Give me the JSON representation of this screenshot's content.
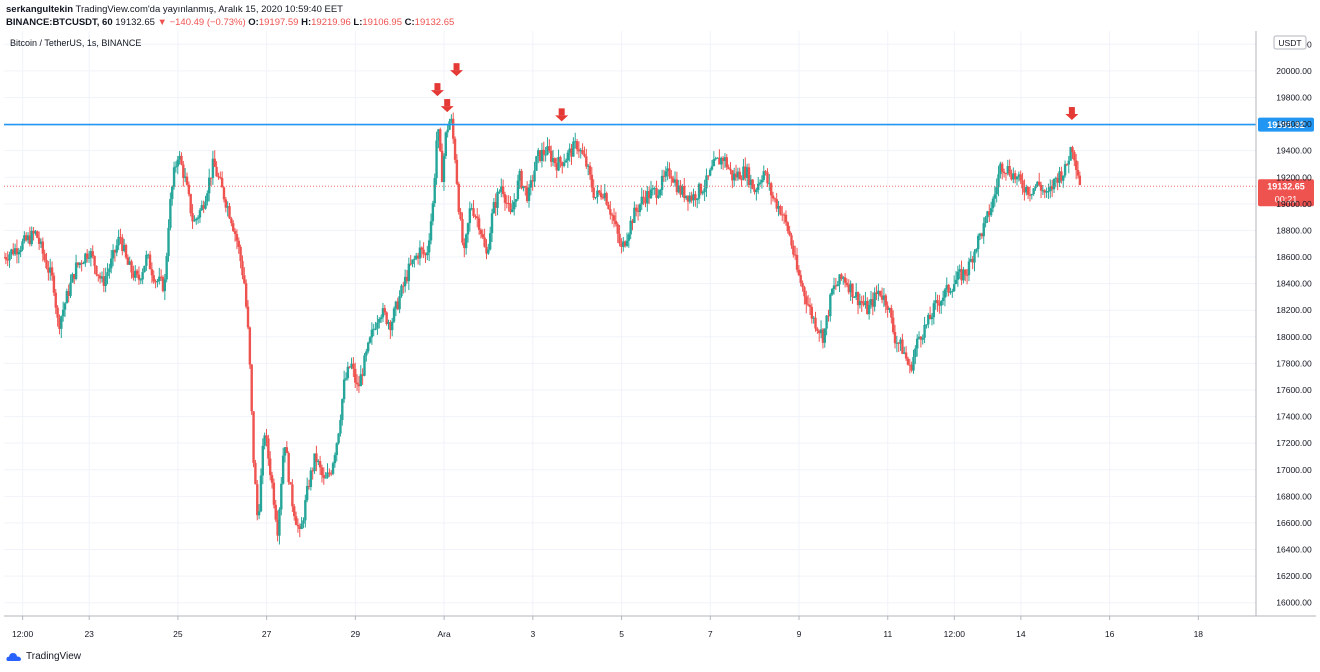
{
  "header": {
    "author": "serkangultekin",
    "published": "TradingView.com'da yayınlanmış, Aralık 15, 2020 10:59:40 EET",
    "symbol": "BINANCE:BTCUSDT, 60",
    "last": "19132.65",
    "change_arrow": "▼",
    "change": "−140.49 (−0.73%)",
    "o_label": "O:",
    "o": "19197.59",
    "h_label": "H:",
    "h": "19219.96",
    "l_label": "L:",
    "l": "19106.95",
    "c_label": "C:",
    "c": "19132.65"
  },
  "footer": {
    "brand": "TradingView",
    "logo_icon": "tradingview-cloud-icon"
  },
  "colors": {
    "up": "#26a69a",
    "down": "#ef5350",
    "level": "#2196f3",
    "grid": "#f0f3fa",
    "axis": "#131722"
  },
  "chart_data": {
    "type": "candlestick",
    "title": "Bitcoin / TetherUS, 1s, BINANCE",
    "currency": "USDT",
    "y_range": [
      15900,
      20300
    ],
    "y_ticks": [
      16000,
      16200,
      16400,
      16600,
      16800,
      17000,
      17200,
      17400,
      17600,
      17800,
      18000,
      18200,
      18400,
      18600,
      18800,
      19000,
      19200,
      19400,
      19600,
      19800,
      20000,
      20200
    ],
    "y_tick_labels": [
      "16000.00",
      "16200.00",
      "16400.00",
      "16600.00",
      "16800.00",
      "17000.00",
      "17200.00",
      "17400.00",
      "17600.00",
      "17800.00",
      "18000.00",
      "18200.00",
      "18400.00",
      "18600.00",
      "18800.00",
      "19000.00",
      "19200.00",
      "19400.00",
      "19600.00",
      "19800.00",
      "20000.00",
      "20200.00"
    ],
    "x_ticks": [
      {
        "label": "12:00",
        "day": 21.5
      },
      {
        "label": "23",
        "day": 23
      },
      {
        "label": "25",
        "day": 25
      },
      {
        "label": "27",
        "day": 27
      },
      {
        "label": "29",
        "day": 29
      },
      {
        "label": "Ara",
        "day": 31
      },
      {
        "label": "3",
        "day": 33
      },
      {
        "label": "5",
        "day": 35
      },
      {
        "label": "7",
        "day": 37
      },
      {
        "label": "9",
        "day": 39
      },
      {
        "label": "11",
        "day": 41
      },
      {
        "label": "12:00",
        "day": 42.5
      },
      {
        "label": "14",
        "day": 44
      },
      {
        "label": "16",
        "day": 46
      },
      {
        "label": "18",
        "day": 48
      }
    ],
    "x_range_days": [
      21.08,
      49.3
    ],
    "x_days_note": "Nov 21 2020 = day 21, Dec 1 = day 31",
    "resistance_level": 19595.92,
    "resistance_label": "19595.92",
    "last_price": 19132.65,
    "last_price_label": "19132.65",
    "countdown_label": "00:21",
    "top_markers": [
      {
        "day": 30.85,
        "price": 19720
      },
      {
        "day": 31.07,
        "price": 19600
      },
      {
        "day": 31.28,
        "price": 19870
      },
      {
        "day": 33.65,
        "price": 19530
      },
      {
        "day": 45.15,
        "price": 19540
      }
    ],
    "path": [
      [
        21.08,
        18600
      ],
      [
        21.5,
        18700
      ],
      [
        21.8,
        18780
      ],
      [
        22.0,
        18580
      ],
      [
        22.2,
        18400
      ],
      [
        22.3,
        18080
      ],
      [
        22.45,
        18250
      ],
      [
        22.7,
        18520
      ],
      [
        23.0,
        18650
      ],
      [
        23.3,
        18400
      ],
      [
        23.5,
        18560
      ],
      [
        23.7,
        18760
      ],
      [
        23.85,
        18550
      ],
      [
        24.1,
        18420
      ],
      [
        24.3,
        18600
      ],
      [
        24.5,
        18430
      ],
      [
        24.7,
        18380
      ],
      [
        24.8,
        18920
      ],
      [
        24.9,
        19200
      ],
      [
        25.0,
        19380
      ],
      [
        25.15,
        19200
      ],
      [
        25.35,
        18850
      ],
      [
        25.55,
        18980
      ],
      [
        25.8,
        19300
      ],
      [
        26.0,
        19100
      ],
      [
        26.2,
        18900
      ],
      [
        26.35,
        18700
      ],
      [
        26.5,
        18400
      ],
      [
        26.6,
        17950
      ],
      [
        26.7,
        17100
      ],
      [
        26.8,
        16600
      ],
      [
        26.95,
        17300
      ],
      [
        27.1,
        16950
      ],
      [
        27.25,
        16550
      ],
      [
        27.4,
        17250
      ],
      [
        27.55,
        16800
      ],
      [
        27.75,
        16500
      ],
      [
        27.95,
        16900
      ],
      [
        28.1,
        17100
      ],
      [
        28.3,
        16900
      ],
      [
        28.45,
        17000
      ],
      [
        28.6,
        17250
      ],
      [
        28.75,
        17650
      ],
      [
        28.9,
        17800
      ],
      [
        29.05,
        17600
      ],
      [
        29.2,
        17800
      ],
      [
        29.4,
        18050
      ],
      [
        29.55,
        18200
      ],
      [
        29.8,
        18100
      ],
      [
        30.0,
        18300
      ],
      [
        30.2,
        18500
      ],
      [
        30.45,
        18650
      ],
      [
        30.6,
        18600
      ],
      [
        30.75,
        19000
      ],
      [
        30.85,
        19600
      ],
      [
        30.95,
        19200
      ],
      [
        31.05,
        19550
      ],
      [
        31.15,
        19650
      ],
      [
        31.25,
        19350
      ],
      [
        31.35,
        18900
      ],
      [
        31.45,
        18600
      ],
      [
        31.6,
        19000
      ],
      [
        31.8,
        18850
      ],
      [
        31.95,
        18600
      ],
      [
        32.1,
        18950
      ],
      [
        32.3,
        19150
      ],
      [
        32.5,
        18900
      ],
      [
        32.7,
        19200
      ],
      [
        32.9,
        19050
      ],
      [
        33.1,
        19350
      ],
      [
        33.3,
        19400
      ],
      [
        33.55,
        19300
      ],
      [
        33.75,
        19350
      ],
      [
        34.0,
        19450
      ],
      [
        34.2,
        19300
      ],
      [
        34.4,
        19050
      ],
      [
        34.6,
        19100
      ],
      [
        34.8,
        18900
      ],
      [
        35.0,
        18650
      ],
      [
        35.25,
        18900
      ],
      [
        35.5,
        19050
      ],
      [
        35.8,
        19100
      ],
      [
        36.1,
        19250
      ],
      [
        36.3,
        19100
      ],
      [
        36.6,
        19050
      ],
      [
        36.9,
        19150
      ],
      [
        37.1,
        19300
      ],
      [
        37.3,
        19350
      ],
      [
        37.5,
        19200
      ],
      [
        37.8,
        19250
      ],
      [
        38.0,
        19100
      ],
      [
        38.2,
        19250
      ],
      [
        38.4,
        19050
      ],
      [
        38.6,
        18950
      ],
      [
        38.8,
        18750
      ],
      [
        38.95,
        18500
      ],
      [
        39.1,
        18350
      ],
      [
        39.3,
        18150
      ],
      [
        39.55,
        18000
      ],
      [
        39.75,
        18350
      ],
      [
        40.0,
        18450
      ],
      [
        40.3,
        18300
      ],
      [
        40.55,
        18200
      ],
      [
        40.8,
        18350
      ],
      [
        41.0,
        18250
      ],
      [
        41.15,
        18000
      ],
      [
        41.35,
        17900
      ],
      [
        41.5,
        17750
      ],
      [
        41.7,
        18000
      ],
      [
        41.9,
        18100
      ],
      [
        42.1,
        18250
      ],
      [
        42.35,
        18350
      ],
      [
        42.6,
        18450
      ],
      [
        42.8,
        18500
      ],
      [
        43.0,
        18700
      ],
      [
        43.2,
        18850
      ],
      [
        43.4,
        19050
      ],
      [
        43.55,
        19300
      ],
      [
        43.75,
        19250
      ],
      [
        44.0,
        19150
      ],
      [
        44.2,
        19100
      ],
      [
        44.4,
        19150
      ],
      [
        44.6,
        19050
      ],
      [
        44.8,
        19200
      ],
      [
        45.0,
        19250
      ],
      [
        45.15,
        19450
      ],
      [
        45.25,
        19300
      ],
      [
        45.35,
        19132
      ]
    ]
  }
}
